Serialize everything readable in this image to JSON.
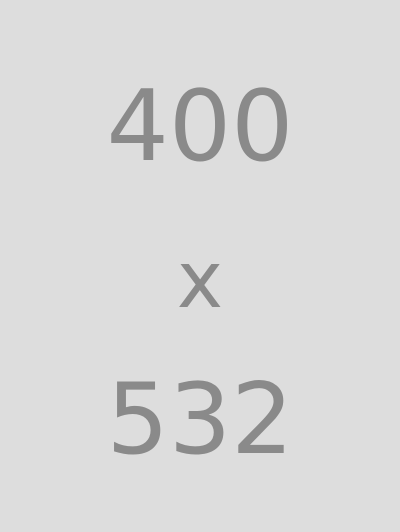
{
  "placeholder": {
    "width_text": "400",
    "separator_text": "x",
    "height_text": "532",
    "background_color": "#dddddd",
    "text_color": "#8a8a8a"
  }
}
